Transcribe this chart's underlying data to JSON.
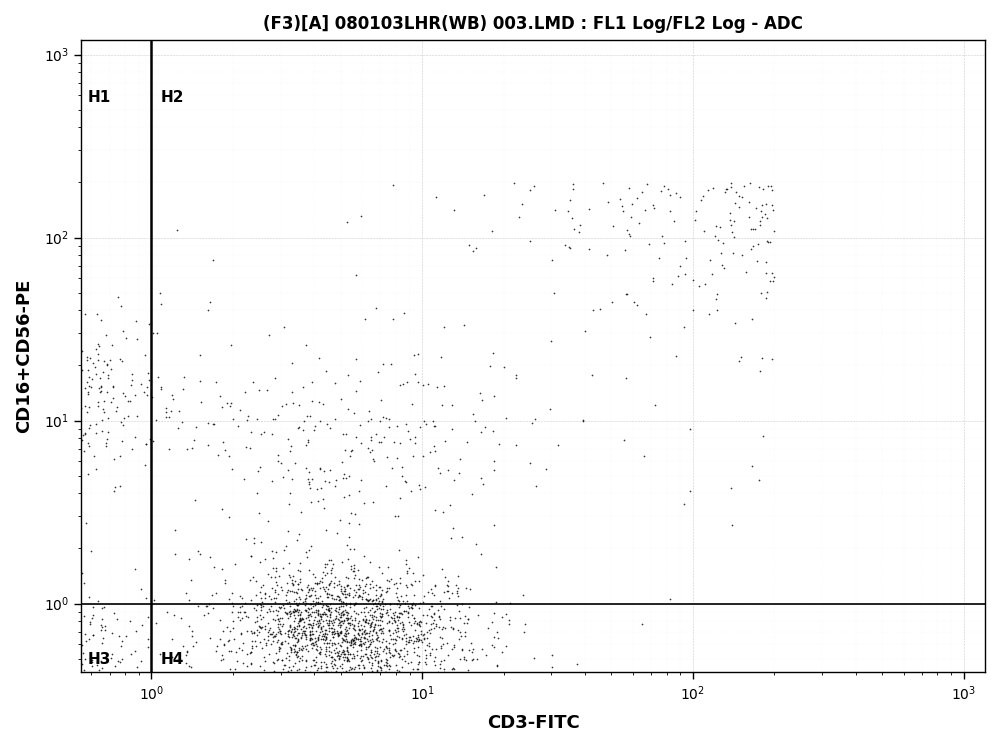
{
  "title": "(F3)[A] 080103LHR(WB) 003.LMD : FL1 Log/FL2 Log - ADC",
  "xlabel": "CD3-FITC",
  "ylabel": "CD16+CD56-PE",
  "xlim": [
    0.55,
    1200
  ],
  "ylim": [
    0.42,
    1200
  ],
  "quadrant_x": 1.0,
  "quadrant_y": 1.0,
  "quadrant_labels": [
    "H1",
    "H2",
    "H3",
    "H4"
  ],
  "background_color": "#ffffff",
  "plot_bg_color": "#ffffff",
  "dot_color": "#111111",
  "dot_size": 1.5,
  "title_fontsize": 12,
  "label_fontsize": 13,
  "tick_fontsize": 10,
  "n_q1_nk": 600,
  "n_q2_nkt": 300,
  "n_q3_neg": 350,
  "n_q4_tcell": 1800,
  "n_scattered": 200
}
